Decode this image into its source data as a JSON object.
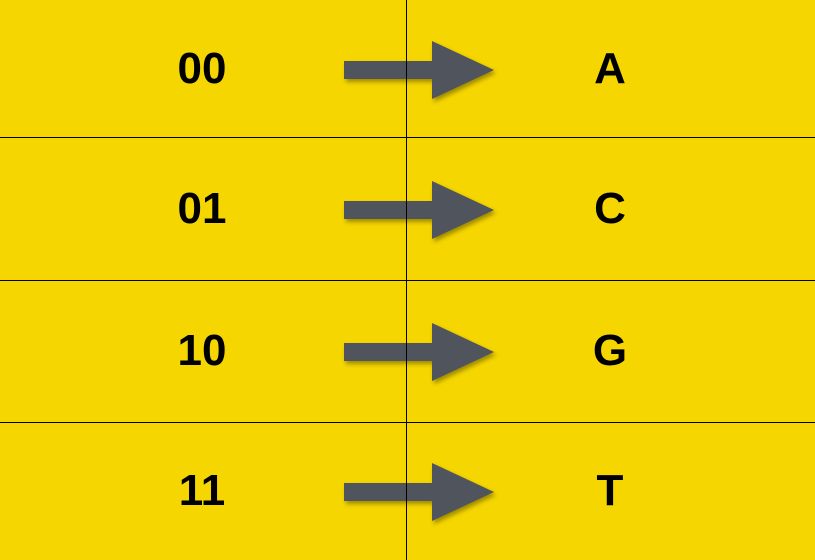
{
  "mapping": {
    "rows": [
      {
        "bits": "00",
        "base": "A"
      },
      {
        "bits": "01",
        "base": "C"
      },
      {
        "bits": "10",
        "base": "G"
      },
      {
        "bits": "11",
        "base": "T"
      }
    ]
  },
  "colors": {
    "background": "#F5D600",
    "grid_line": "#000000",
    "arrow": "#50545C",
    "text": "#000000"
  },
  "icons": {
    "arrow": "right-arrow-icon"
  }
}
